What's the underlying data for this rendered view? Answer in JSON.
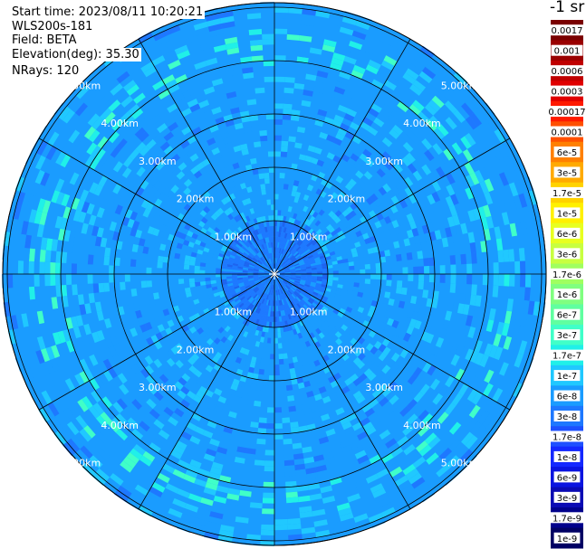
{
  "header": {
    "start_time": "Start time: 2023/08/11 10:20:21",
    "instrument": "WLS200s-181",
    "field": "Field: BETA",
    "elevation": "Elevation(deg): 35.30",
    "nrays": "NRays: 120"
  },
  "units_label": "-1 sr",
  "chart_data": {
    "type": "heatmap",
    "subtype": "polar-ppi",
    "field": "BETA",
    "elevation_deg": 35.3,
    "nrays": 120,
    "range_rings_km": [
      1,
      2,
      3,
      4,
      5,
      6
    ],
    "range_labels": [
      "1.00km",
      "2.00km",
      "3.00km",
      "4.00km",
      "5.00km"
    ],
    "spokes_deg": [
      0,
      30,
      60,
      90,
      120,
      150,
      180,
      210,
      240,
      270,
      300,
      330
    ],
    "dominant_values": [
      {
        "range": "0-1km",
        "value": "6e-8"
      },
      {
        "range": "1-6km",
        "value": "1e-7 to 3e-7"
      }
    ],
    "colorbar": {
      "labels": [
        "0.0017",
        "0.001",
        "0.0006",
        "0.0003",
        "0.00017",
        "0.0001",
        "6e-5",
        "3e-5",
        "1.7e-5",
        "1e-5",
        "6e-6",
        "3e-6",
        "1.7e-6",
        "1e-6",
        "6e-7",
        "3e-7",
        "1.7e-7",
        "1e-7",
        "6e-8",
        "3e-8",
        "1.7e-8",
        "1e-8",
        "6e-9",
        "3e-9",
        "1.7e-9",
        "1e-9"
      ],
      "colors": [
        "#7a0000",
        "#9a0000",
        "#c00000",
        "#e00000",
        "#ff1a00",
        "#ff5000",
        "#ff8000",
        "#ffaa00",
        "#ffd200",
        "#fff000",
        "#e8ff20",
        "#c8ff40",
        "#a0ff60",
        "#80ff80",
        "#60ffa0",
        "#40ffc8",
        "#20f0e8",
        "#20c8ff",
        "#1a9cff",
        "#1e78ff",
        "#1e50ff",
        "#1428ff",
        "#0a14e0",
        "#0a0ab4",
        "#00008c",
        "#000064"
      ]
    }
  }
}
